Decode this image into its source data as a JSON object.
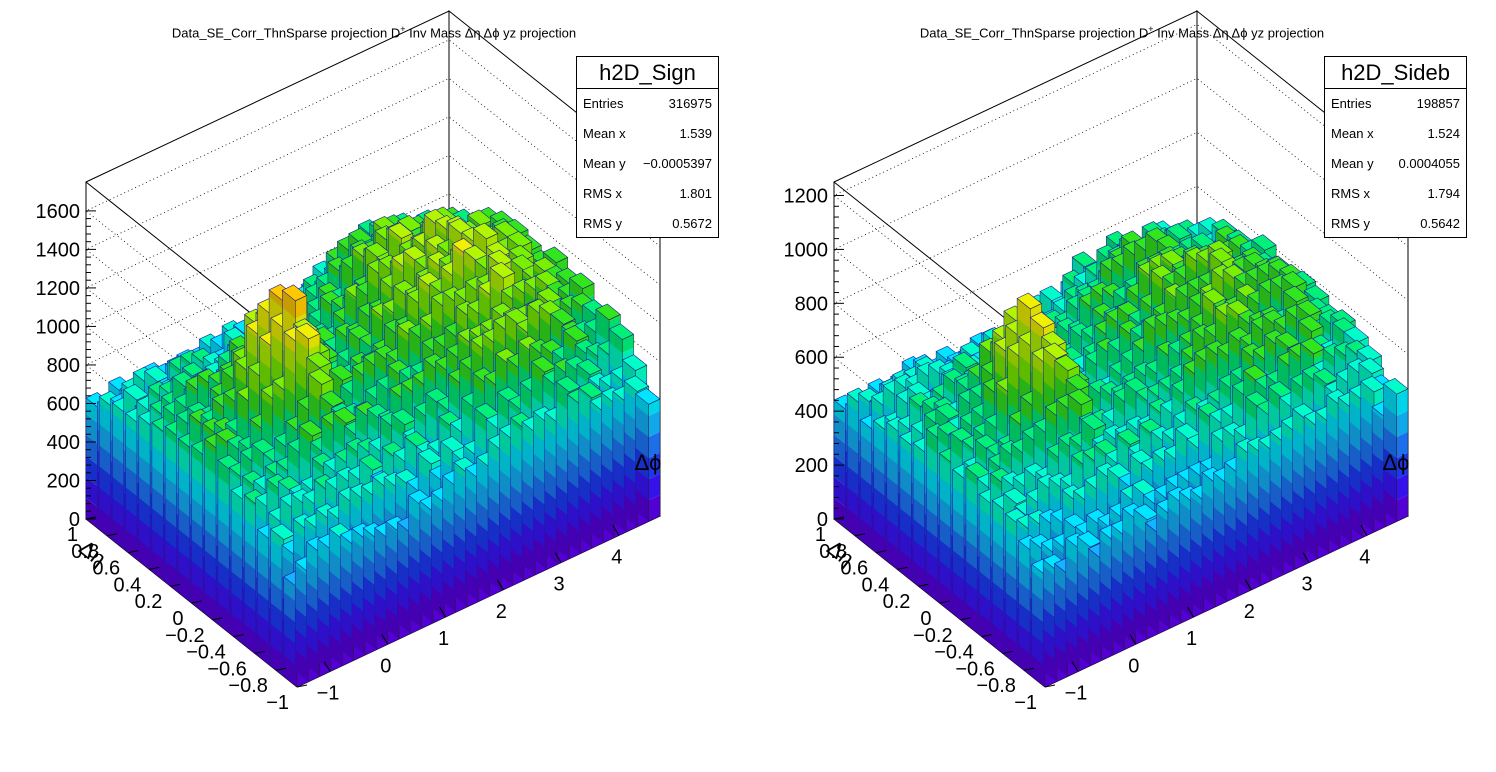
{
  "chart_data": [
    {
      "type": "lego",
      "title": "Data_SE_Corr_ThnSparse projection  D",
      "title_sup": "+",
      "title_rest": " Inv Mass Δη Δϕ yz projection",
      "xlabel": "Δϕ",
      "ylabel": "Δη",
      "xlim": [
        -1.5708,
        4.7124
      ],
      "ylim": [
        -1,
        1
      ],
      "zlim": [
        0,
        1750
      ],
      "x_ticks": [
        "−1",
        "0",
        "1",
        "2",
        "3",
        "4"
      ],
      "x_tick_values": [
        -1,
        0,
        1,
        2,
        3,
        4
      ],
      "y_ticks": [
        "−1",
        "−0.8",
        "−0.6",
        "−0.4",
        "−0.2",
        "0",
        "0.2",
        "0.4",
        "0.6",
        "0.8",
        "1"
      ],
      "y_tick_values": [
        -1,
        -0.8,
        -0.6,
        -0.4,
        -0.2,
        0,
        0.2,
        0.4,
        0.6,
        0.8,
        1
      ],
      "z_ticks": [
        "0",
        "200",
        "400",
        "600",
        "800",
        "1000",
        "1200",
        "1400",
        "1600"
      ],
      "z_tick_values": [
        0,
        200,
        400,
        600,
        800,
        1000,
        1200,
        1400,
        1600
      ],
      "n_phi_bins": 32,
      "n_eta_bins": 16,
      "shape": {
        "baseline": 860,
        "away_peak": 1450,
        "away_center": 3.1,
        "away_width": 0.85,
        "near_peak": 1380,
        "near_eta_width": 0.22,
        "near_phi_width": 0.32,
        "eta_edge_drop": 0.35
      },
      "stats": {
        "name": "h2D_Sign",
        "rows": [
          {
            "label": "Entries",
            "value": "316975"
          },
          {
            "label": "Mean x",
            "value": "1.539"
          },
          {
            "label": "Mean y",
            "value": "−0.0005397"
          },
          {
            "label": "RMS x",
            "value": "1.801"
          },
          {
            "label": "RMS y",
            "value": "0.5672"
          }
        ]
      }
    },
    {
      "type": "lego",
      "title": "Data_SE_Corr_ThnSparse projection  D",
      "title_sup": "+",
      "title_rest": " Inv Mass Δη Δϕ yz projection",
      "xlabel": "Δϕ",
      "ylabel": "Δη",
      "xlim": [
        -1.5708,
        4.7124
      ],
      "ylim": [
        -1,
        1
      ],
      "zlim": [
        0,
        1250
      ],
      "x_ticks": [
        "−1",
        "0",
        "1",
        "2",
        "3",
        "4"
      ],
      "x_tick_values": [
        -1,
        0,
        1,
        2,
        3,
        4
      ],
      "y_ticks": [
        "−1",
        "−0.8",
        "−0.6",
        "−0.4",
        "−0.2",
        "0",
        "0.2",
        "0.4",
        "0.6",
        "0.8",
        "1"
      ],
      "y_tick_values": [
        -1,
        -0.8,
        -0.6,
        -0.4,
        -0.2,
        0,
        0.2,
        0.4,
        0.6,
        0.8,
        1
      ],
      "z_ticks": [
        "0",
        "200",
        "400",
        "600",
        "800",
        "1000",
        "1200"
      ],
      "z_tick_values": [
        0,
        200,
        400,
        600,
        800,
        1000,
        1200
      ],
      "n_phi_bins": 32,
      "n_eta_bins": 16,
      "shape": {
        "baseline": 570,
        "away_peak": 890,
        "away_center": 3.1,
        "away_width": 0.85,
        "near_peak": 930,
        "near_eta_width": 0.22,
        "near_phi_width": 0.32,
        "eta_edge_drop": 0.3
      },
      "stats": {
        "name": "h2D_Sideb",
        "rows": [
          {
            "label": "Entries",
            "value": "198857"
          },
          {
            "label": "Mean x",
            "value": "1.524"
          },
          {
            "label": "Mean y",
            "value": "0.0004055"
          },
          {
            "label": "RMS x",
            "value": "1.794"
          },
          {
            "label": "RMS y",
            "value": "0.5642"
          }
        ]
      }
    }
  ],
  "palette": [
    "#5a00e6",
    "#3a14ff",
    "#1e3cff",
    "#1e78ff",
    "#14b4ff",
    "#00e6ff",
    "#00ffc8",
    "#00f078",
    "#32e61e",
    "#78f000",
    "#b4f500",
    "#f0f000",
    "#ffc800",
    "#ff8c00",
    "#ff4600",
    "#f00000"
  ]
}
